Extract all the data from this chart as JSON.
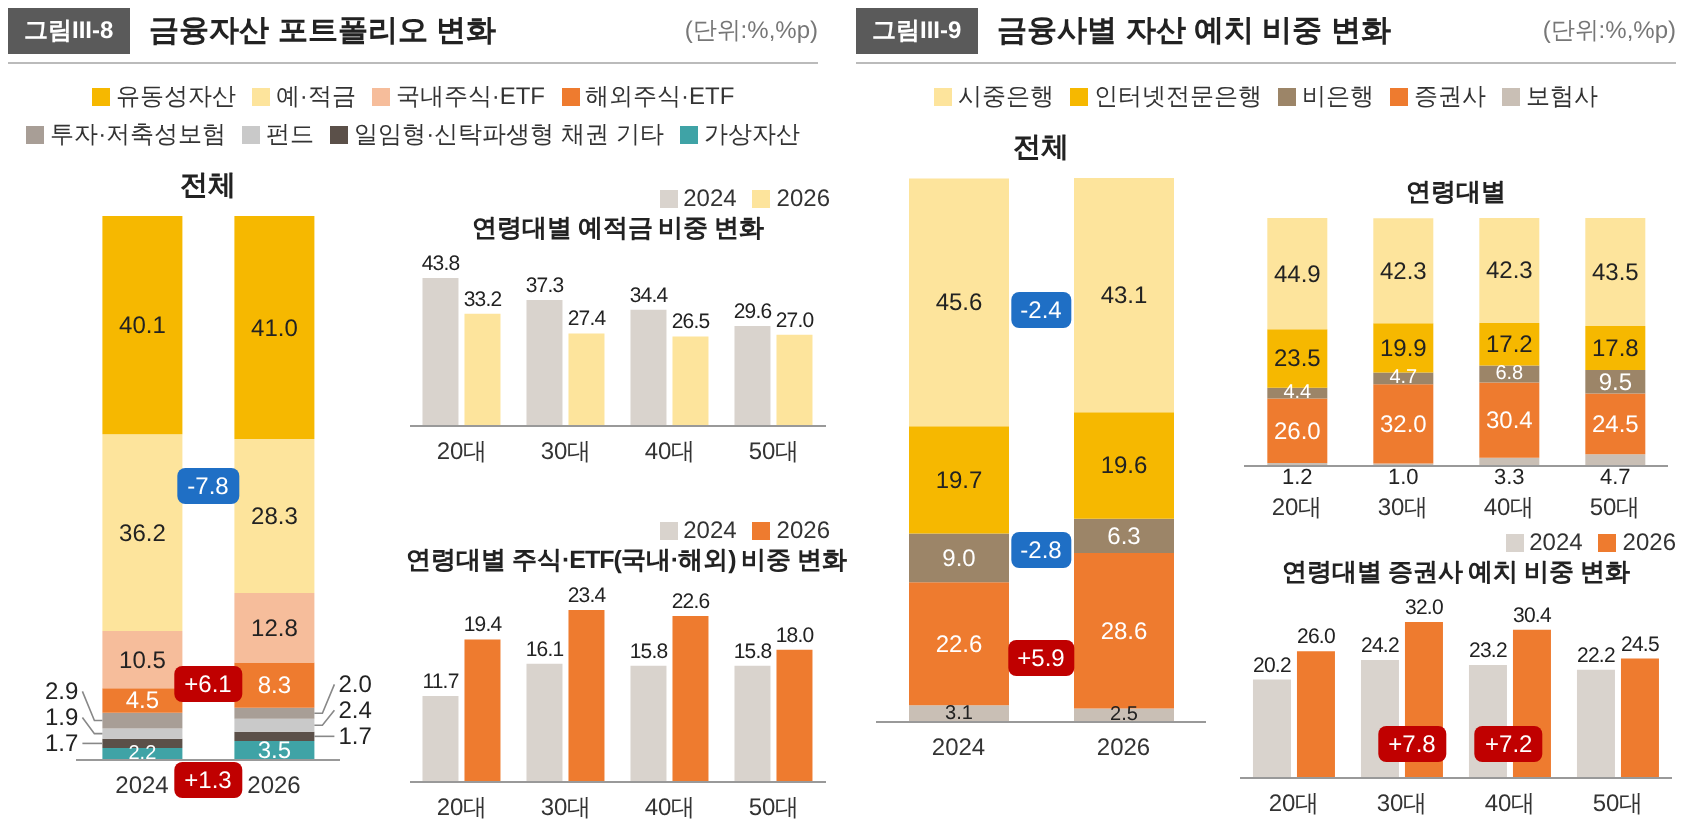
{
  "chart_data": [
    {
      "type": "bar",
      "stacked": true,
      "title": "금융자산 포트폴리오 변화",
      "subtitle": "전체",
      "categories": [
        "2024",
        "2026"
      ],
      "legend": "top",
      "tick_labels": "x",
      "annotations": [
        "그림III-8",
        "(단위:%,%p)",
        "-7.8",
        "+6.1",
        "+1.3"
      ],
      "series": [
        {
          "name": "가상자산",
          "color": "#3fa3a6",
          "values": [
            2.2,
            3.5
          ],
          "value_labels": [
            "2.2",
            "3.5"
          ]
        },
        {
          "name": "일임형·신탁파생형 채권 기타",
          "color": "#5b5049",
          "values": [
            1.7,
            1.7
          ],
          "value_labels": [
            "1.7",
            "1.7"
          ]
        },
        {
          "name": "펀드",
          "color": "#c9c9c9",
          "values": [
            1.9,
            2.4
          ],
          "value_labels": [
            "1.9",
            "2.4"
          ]
        },
        {
          "name": "투자·저축성보험",
          "color": "#a89e96",
          "values": [
            2.9,
            2.0
          ],
          "value_labels": [
            "2.9",
            "2.0"
          ]
        },
        {
          "name": "해외주식·ETF",
          "color": "#ee7b2f",
          "values": [
            4.5,
            8.3
          ],
          "value_labels": [
            "4.5",
            "8.3"
          ]
        },
        {
          "name": "국내주식·ETF",
          "color": "#f6bd9b",
          "values": [
            10.5,
            12.8
          ],
          "value_labels": [
            "10.5",
            "12.8"
          ]
        },
        {
          "name": "예·적금",
          "color": "#fde49c",
          "values": [
            36.2,
            28.3
          ],
          "value_labels": [
            "36.2",
            "28.3"
          ]
        },
        {
          "name": "유동성자산",
          "color": "#f6b800",
          "values": [
            40.1,
            41.0
          ],
          "value_labels": [
            "40.1",
            "41.0"
          ]
        }
      ]
    },
    {
      "type": "bar",
      "title": "연령대별 예적금 비중 변화",
      "categories": [
        "20대",
        "30대",
        "40대",
        "50대"
      ],
      "legend": "top right",
      "tick_labels": "x",
      "series": [
        {
          "name": "2024",
          "color": "#d9d3cd",
          "values": [
            43.8,
            37.3,
            34.4,
            29.6
          ],
          "value_labels": [
            "43.8",
            "37.3",
            "34.4",
            "29.6"
          ]
        },
        {
          "name": "2026",
          "color": "#fde49c",
          "values": [
            33.2,
            27.4,
            26.5,
            27.0
          ],
          "value_labels": [
            "33.2",
            "27.4",
            "26.5",
            "27.0"
          ]
        }
      ]
    },
    {
      "type": "bar",
      "title": "연령대별 주식·ETF(국내·해외) 비중 변화",
      "categories": [
        "20대",
        "30대",
        "40대",
        "50대"
      ],
      "legend": "top right",
      "tick_labels": "x",
      "series": [
        {
          "name": "2024",
          "color": "#d9d3cd",
          "values": [
            11.7,
            16.1,
            15.8,
            15.8
          ],
          "value_labels": [
            "11.7",
            "16.1",
            "15.8",
            "15.8"
          ]
        },
        {
          "name": "2026",
          "color": "#ee7b2f",
          "values": [
            19.4,
            23.4,
            22.6,
            18.0
          ],
          "value_labels": [
            "19.4",
            "23.4",
            "22.6",
            "18.0"
          ]
        }
      ]
    },
    {
      "type": "bar",
      "stacked": true,
      "title": "금융사별 자산 예치 비중 변화",
      "subtitle": "전체",
      "categories": [
        "2024",
        "2026"
      ],
      "legend": "top",
      "tick_labels": "x",
      "annotations": [
        "그림III-9",
        "(단위:%,%p)",
        "-2.4",
        "-2.8",
        "+5.9"
      ],
      "series": [
        {
          "name": "보험사",
          "color": "#c9bfb5",
          "values": [
            3.1,
            2.5
          ],
          "value_labels": [
            "3.1",
            "2.5"
          ]
        },
        {
          "name": "증권사",
          "color": "#ee7b2f",
          "values": [
            22.6,
            28.6
          ],
          "value_labels": [
            "22.6",
            "28.6"
          ]
        },
        {
          "name": "비은행",
          "color": "#9c8568",
          "values": [
            9.0,
            6.3
          ],
          "value_labels": [
            "9.0",
            "6.3"
          ]
        },
        {
          "name": "인터넷전문은행",
          "color": "#f6b800",
          "values": [
            19.7,
            19.6
          ],
          "value_labels": [
            "19.7",
            "19.6"
          ]
        },
        {
          "name": "시중은행",
          "color": "#fde49c",
          "values": [
            45.6,
            43.1
          ],
          "value_labels": [
            "45.6",
            "43.1"
          ]
        }
      ]
    },
    {
      "type": "bar",
      "stacked": true,
      "title": "연령대별",
      "categories": [
        "20대",
        "30대",
        "40대",
        "50대"
      ],
      "tick_labels": "x",
      "series": [
        {
          "color": "#c9bfb5",
          "values": [
            1.2,
            1.0,
            3.3,
            4.7
          ],
          "value_labels": [
            "1.2",
            "1.0",
            "3.3",
            "4.7"
          ]
        },
        {
          "color": "#ee7b2f",
          "values": [
            26.0,
            32.0,
            30.4,
            24.5
          ],
          "value_labels": [
            "26.0",
            "32.0",
            "30.4",
            "24.5"
          ]
        },
        {
          "color": "#9c8568",
          "values": [
            4.4,
            4.7,
            6.8,
            9.5
          ],
          "value_labels": [
            "4.4",
            "4.7",
            "6.8",
            "9.5"
          ]
        },
        {
          "color": "#f6b800",
          "values": [
            23.5,
            19.9,
            17.2,
            17.8
          ],
          "value_labels": [
            "23.5",
            "19.9",
            "17.2",
            "17.8"
          ]
        },
        {
          "color": "#fde49c",
          "values": [
            44.9,
            42.3,
            42.3,
            43.5
          ],
          "value_labels": [
            "44.9",
            "42.3",
            "42.3",
            "43.5"
          ]
        }
      ]
    },
    {
      "type": "bar",
      "title": "연령대별 증권사 예치 비중 변화",
      "categories": [
        "20대",
        "30대",
        "40대",
        "50대"
      ],
      "legend": "top right",
      "tick_labels": "x",
      "annotations": [
        "+7.8",
        "+7.2"
      ],
      "series": [
        {
          "name": "2024",
          "color": "#d9d3cd",
          "values": [
            20.2,
            24.2,
            23.2,
            22.2
          ],
          "value_labels": [
            "20.2",
            "24.2",
            "23.2",
            "22.2"
          ]
        },
        {
          "name": "2026",
          "color": "#ee7b2f",
          "values": [
            26.0,
            32.0,
            30.4,
            24.5
          ],
          "value_labels": [
            "26.0",
            "32.0",
            "30.4",
            "24.5"
          ]
        }
      ]
    }
  ]
}
